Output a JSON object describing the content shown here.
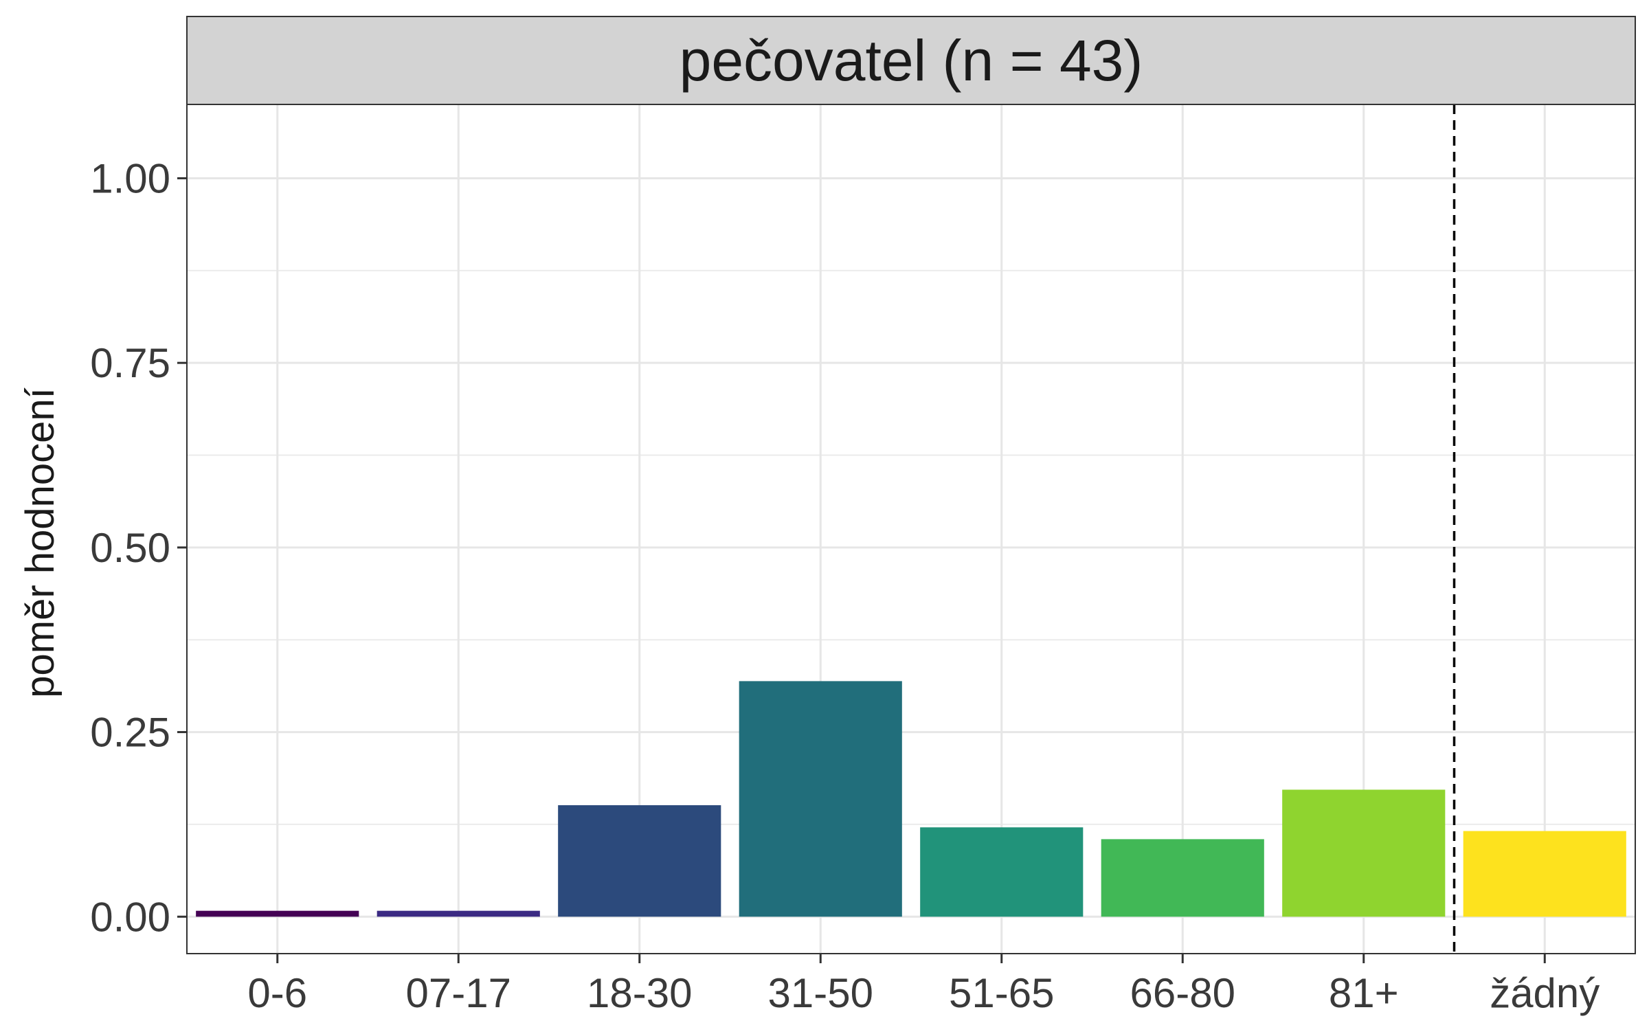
{
  "chart_data": {
    "type": "bar",
    "facet_title": "pečovatel (n = 43)",
    "ylabel": "poměr hodnocení",
    "xlabel": "",
    "categories": [
      "0-6",
      "07-17",
      "18-30",
      "31-50",
      "51-65",
      "66-80",
      "81+",
      "žádný"
    ],
    "values": [
      0.008,
      0.008,
      0.151,
      0.319,
      0.121,
      0.105,
      0.172,
      0.116
    ],
    "colors": [
      "#440154",
      "#3b2a83",
      "#2c4a7c",
      "#216e7b",
      "#21937a",
      "#41b856",
      "#8fd42f",
      "#fde21e"
    ],
    "ylim": [
      -0.05,
      1.1
    ],
    "yticks": [
      0.0,
      0.25,
      0.5,
      0.75,
      1.0
    ],
    "ytick_labels": [
      "0.00",
      "0.25",
      "0.50",
      "0.75",
      "1.00"
    ],
    "vline_after_category": "81+",
    "vline_style": "dashed",
    "grid": true
  }
}
